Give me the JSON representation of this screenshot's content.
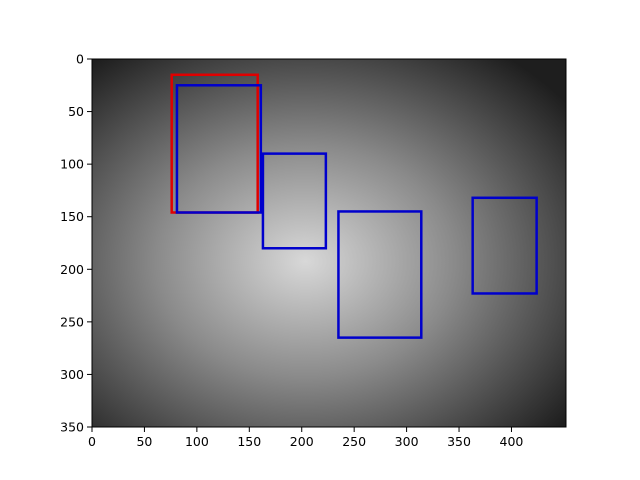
{
  "chart_data": {
    "type": "image_boxes",
    "xlim": [
      0,
      452
    ],
    "ylim": [
      350,
      0
    ],
    "xticks": [
      0,
      50,
      100,
      150,
      200,
      250,
      300,
      350,
      400
    ],
    "yticks": [
      0,
      50,
      100,
      150,
      200,
      250,
      300,
      350
    ],
    "boxes": [
      {
        "color": "#e00000",
        "x": [
          76,
          158
        ],
        "y": [
          15,
          146
        ]
      },
      {
        "color": "#0000cc",
        "x": [
          81,
          161
        ],
        "y": [
          25,
          146
        ]
      },
      {
        "color": "#0000cc",
        "x": [
          163,
          223
        ],
        "y": [
          90,
          180
        ]
      },
      {
        "color": "#0000cc",
        "x": [
          235,
          314
        ],
        "y": [
          145,
          265
        ]
      },
      {
        "color": "#0000cc",
        "x": [
          363,
          424
        ],
        "y": [
          132,
          223
        ]
      }
    ]
  }
}
